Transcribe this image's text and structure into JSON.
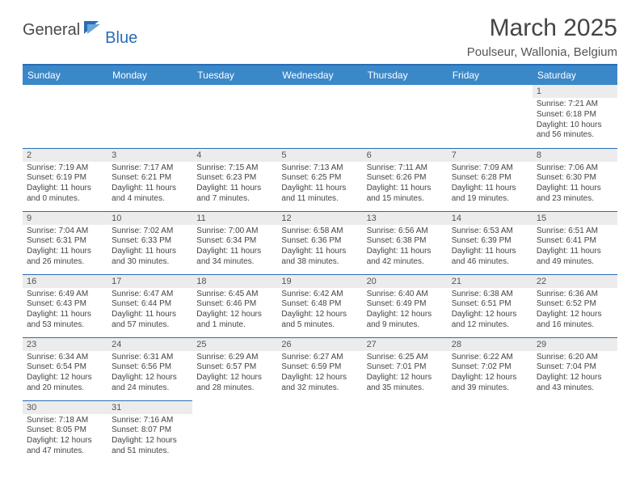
{
  "brand": {
    "word1": "General",
    "word2": "Blue"
  },
  "title": "March 2025",
  "location": "Poulseur, Wallonia, Belgium",
  "colors": {
    "header_bg": "#3b88c9",
    "rule": "#2a6db5",
    "daynum_bg": "#ececec",
    "text": "#444444",
    "brand_blue": "#2a6db5"
  },
  "layout": {
    "columns": 7,
    "rows": 6
  },
  "days_of_week": [
    "Sunday",
    "Monday",
    "Tuesday",
    "Wednesday",
    "Thursday",
    "Friday",
    "Saturday"
  ],
  "cells": [
    {
      "empty": true
    },
    {
      "empty": true
    },
    {
      "empty": true
    },
    {
      "empty": true
    },
    {
      "empty": true
    },
    {
      "empty": true
    },
    {
      "n": "1",
      "sunrise": "Sunrise: 7:21 AM",
      "sunset": "Sunset: 6:18 PM",
      "day1": "Daylight: 10 hours",
      "day2": "and 56 minutes."
    },
    {
      "n": "2",
      "sunrise": "Sunrise: 7:19 AM",
      "sunset": "Sunset: 6:19 PM",
      "day1": "Daylight: 11 hours",
      "day2": "and 0 minutes."
    },
    {
      "n": "3",
      "sunrise": "Sunrise: 7:17 AM",
      "sunset": "Sunset: 6:21 PM",
      "day1": "Daylight: 11 hours",
      "day2": "and 4 minutes."
    },
    {
      "n": "4",
      "sunrise": "Sunrise: 7:15 AM",
      "sunset": "Sunset: 6:23 PM",
      "day1": "Daylight: 11 hours",
      "day2": "and 7 minutes."
    },
    {
      "n": "5",
      "sunrise": "Sunrise: 7:13 AM",
      "sunset": "Sunset: 6:25 PM",
      "day1": "Daylight: 11 hours",
      "day2": "and 11 minutes."
    },
    {
      "n": "6",
      "sunrise": "Sunrise: 7:11 AM",
      "sunset": "Sunset: 6:26 PM",
      "day1": "Daylight: 11 hours",
      "day2": "and 15 minutes."
    },
    {
      "n": "7",
      "sunrise": "Sunrise: 7:09 AM",
      "sunset": "Sunset: 6:28 PM",
      "day1": "Daylight: 11 hours",
      "day2": "and 19 minutes."
    },
    {
      "n": "8",
      "sunrise": "Sunrise: 7:06 AM",
      "sunset": "Sunset: 6:30 PM",
      "day1": "Daylight: 11 hours",
      "day2": "and 23 minutes."
    },
    {
      "n": "9",
      "sunrise": "Sunrise: 7:04 AM",
      "sunset": "Sunset: 6:31 PM",
      "day1": "Daylight: 11 hours",
      "day2": "and 26 minutes."
    },
    {
      "n": "10",
      "sunrise": "Sunrise: 7:02 AM",
      "sunset": "Sunset: 6:33 PM",
      "day1": "Daylight: 11 hours",
      "day2": "and 30 minutes."
    },
    {
      "n": "11",
      "sunrise": "Sunrise: 7:00 AM",
      "sunset": "Sunset: 6:34 PM",
      "day1": "Daylight: 11 hours",
      "day2": "and 34 minutes."
    },
    {
      "n": "12",
      "sunrise": "Sunrise: 6:58 AM",
      "sunset": "Sunset: 6:36 PM",
      "day1": "Daylight: 11 hours",
      "day2": "and 38 minutes."
    },
    {
      "n": "13",
      "sunrise": "Sunrise: 6:56 AM",
      "sunset": "Sunset: 6:38 PM",
      "day1": "Daylight: 11 hours",
      "day2": "and 42 minutes."
    },
    {
      "n": "14",
      "sunrise": "Sunrise: 6:53 AM",
      "sunset": "Sunset: 6:39 PM",
      "day1": "Daylight: 11 hours",
      "day2": "and 46 minutes."
    },
    {
      "n": "15",
      "sunrise": "Sunrise: 6:51 AM",
      "sunset": "Sunset: 6:41 PM",
      "day1": "Daylight: 11 hours",
      "day2": "and 49 minutes."
    },
    {
      "n": "16",
      "sunrise": "Sunrise: 6:49 AM",
      "sunset": "Sunset: 6:43 PM",
      "day1": "Daylight: 11 hours",
      "day2": "and 53 minutes."
    },
    {
      "n": "17",
      "sunrise": "Sunrise: 6:47 AM",
      "sunset": "Sunset: 6:44 PM",
      "day1": "Daylight: 11 hours",
      "day2": "and 57 minutes."
    },
    {
      "n": "18",
      "sunrise": "Sunrise: 6:45 AM",
      "sunset": "Sunset: 6:46 PM",
      "day1": "Daylight: 12 hours",
      "day2": "and 1 minute."
    },
    {
      "n": "19",
      "sunrise": "Sunrise: 6:42 AM",
      "sunset": "Sunset: 6:48 PM",
      "day1": "Daylight: 12 hours",
      "day2": "and 5 minutes."
    },
    {
      "n": "20",
      "sunrise": "Sunrise: 6:40 AM",
      "sunset": "Sunset: 6:49 PM",
      "day1": "Daylight: 12 hours",
      "day2": "and 9 minutes."
    },
    {
      "n": "21",
      "sunrise": "Sunrise: 6:38 AM",
      "sunset": "Sunset: 6:51 PM",
      "day1": "Daylight: 12 hours",
      "day2": "and 12 minutes."
    },
    {
      "n": "22",
      "sunrise": "Sunrise: 6:36 AM",
      "sunset": "Sunset: 6:52 PM",
      "day1": "Daylight: 12 hours",
      "day2": "and 16 minutes."
    },
    {
      "n": "23",
      "sunrise": "Sunrise: 6:34 AM",
      "sunset": "Sunset: 6:54 PM",
      "day1": "Daylight: 12 hours",
      "day2": "and 20 minutes."
    },
    {
      "n": "24",
      "sunrise": "Sunrise: 6:31 AM",
      "sunset": "Sunset: 6:56 PM",
      "day1": "Daylight: 12 hours",
      "day2": "and 24 minutes."
    },
    {
      "n": "25",
      "sunrise": "Sunrise: 6:29 AM",
      "sunset": "Sunset: 6:57 PM",
      "day1": "Daylight: 12 hours",
      "day2": "and 28 minutes."
    },
    {
      "n": "26",
      "sunrise": "Sunrise: 6:27 AM",
      "sunset": "Sunset: 6:59 PM",
      "day1": "Daylight: 12 hours",
      "day2": "and 32 minutes."
    },
    {
      "n": "27",
      "sunrise": "Sunrise: 6:25 AM",
      "sunset": "Sunset: 7:01 PM",
      "day1": "Daylight: 12 hours",
      "day2": "and 35 minutes."
    },
    {
      "n": "28",
      "sunrise": "Sunrise: 6:22 AM",
      "sunset": "Sunset: 7:02 PM",
      "day1": "Daylight: 12 hours",
      "day2": "and 39 minutes."
    },
    {
      "n": "29",
      "sunrise": "Sunrise: 6:20 AM",
      "sunset": "Sunset: 7:04 PM",
      "day1": "Daylight: 12 hours",
      "day2": "and 43 minutes."
    },
    {
      "n": "30",
      "sunrise": "Sunrise: 7:18 AM",
      "sunset": "Sunset: 8:05 PM",
      "day1": "Daylight: 12 hours",
      "day2": "and 47 minutes."
    },
    {
      "n": "31",
      "sunrise": "Sunrise: 7:16 AM",
      "sunset": "Sunset: 8:07 PM",
      "day1": "Daylight: 12 hours",
      "day2": "and 51 minutes."
    },
    {
      "empty": true
    },
    {
      "empty": true
    },
    {
      "empty": true
    },
    {
      "empty": true
    },
    {
      "empty": true
    }
  ]
}
